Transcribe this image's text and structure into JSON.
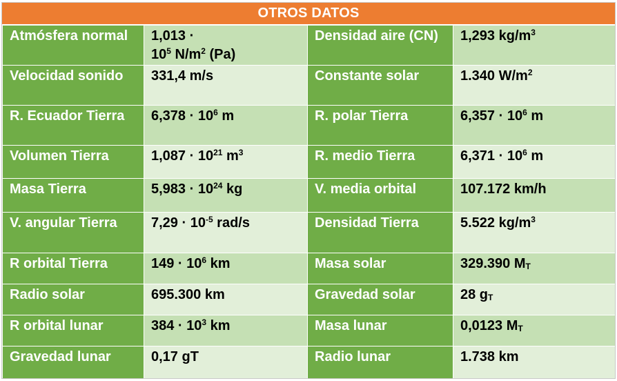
{
  "title": "OTROS DATOS",
  "rows": [
    {
      "l1": "Atmósfera normal",
      "v1": [
        {
          "t": "1,013 ·"
        },
        {
          "br": true
        },
        {
          "t": "10"
        },
        {
          "sup": "5"
        },
        {
          "t": " N/m"
        },
        {
          "sup": "2"
        },
        {
          "t": "  (Pa)"
        }
      ],
      "l2": "Densidad aire (CN)",
      "v2": [
        {
          "t": "1,293 kg/m"
        },
        {
          "sup": "3"
        }
      ]
    },
    {
      "l1": "Velocidad sonido",
      "v1": [
        {
          "t": "331,4 m/s"
        }
      ],
      "l2": "Constante solar",
      "v2": [
        {
          "t": "1.340 W/m"
        },
        {
          "sup": "2"
        }
      ]
    },
    {
      "l1": "R. Ecuador Tierra",
      "v1": [
        {
          "t": "6,378 · 10"
        },
        {
          "sup": "6"
        },
        {
          "t": " m"
        }
      ],
      "l2": "R. polar Tierra",
      "v2": [
        {
          "t": "6,357 · 10"
        },
        {
          "sup": "6"
        },
        {
          "t": " m"
        }
      ]
    },
    {
      "l1": "Volumen Tierra",
      "v1": [
        {
          "t": "1,087 · 10"
        },
        {
          "sup": "21"
        },
        {
          "t": " m"
        },
        {
          "sup": "3"
        }
      ],
      "l2": "R. medio Tierra",
      "v2": [
        {
          "t": "6,371 · 10"
        },
        {
          "sup": "6"
        },
        {
          "t": " m"
        }
      ]
    },
    {
      "l1": "Masa Tierra",
      "v1": [
        {
          "t": "5,983 · 10"
        },
        {
          "sup": "24"
        },
        {
          "t": " kg"
        }
      ],
      "l2": "V. media orbital",
      "v2": [
        {
          "t": "107.172 km/h"
        }
      ]
    },
    {
      "l1": "V. angular Tierra",
      "v1": [
        {
          "t": "7,29 · 10"
        },
        {
          "sup": "-5"
        },
        {
          "t": " rad/s"
        }
      ],
      "l2": "Densidad Tierra",
      "v2": [
        {
          "t": "5.522 kg/m"
        },
        {
          "sup": "3"
        }
      ]
    },
    {
      "l1": "R orbital Tierra",
      "v1": [
        {
          "t": "149 · 10"
        },
        {
          "sup": "6"
        },
        {
          "t": " km"
        }
      ],
      "l2": "Masa solar",
      "v2": [
        {
          "t": "329.390 M"
        },
        {
          "sub": "T"
        }
      ]
    },
    {
      "l1": "Radio solar",
      "v1": [
        {
          "t": "695.300 km"
        }
      ],
      "l2": "Gravedad solar",
      "v2": [
        {
          "t": "28 g"
        },
        {
          "sub": "T"
        }
      ]
    },
    {
      "l1": "R orbital lunar",
      "v1": [
        {
          "t": "384 · 10"
        },
        {
          "sup": "3"
        },
        {
          "t": " km"
        }
      ],
      "l2": "Masa lunar",
      "v2": [
        {
          "t": "0,0123 M"
        },
        {
          "sub": "T"
        }
      ]
    },
    {
      "l1": "Gravedad lunar",
      "v1": [
        {
          "t": "0,17 gT"
        }
      ],
      "l2": "Radio lunar",
      "v2": [
        {
          "t": "1.738 km"
        }
      ]
    }
  ],
  "colors": {
    "header": "#ed7d31",
    "label_cell": "#70ad47",
    "value_cell_dark": "#c5e0b4",
    "value_cell_light": "#e2efd9"
  }
}
